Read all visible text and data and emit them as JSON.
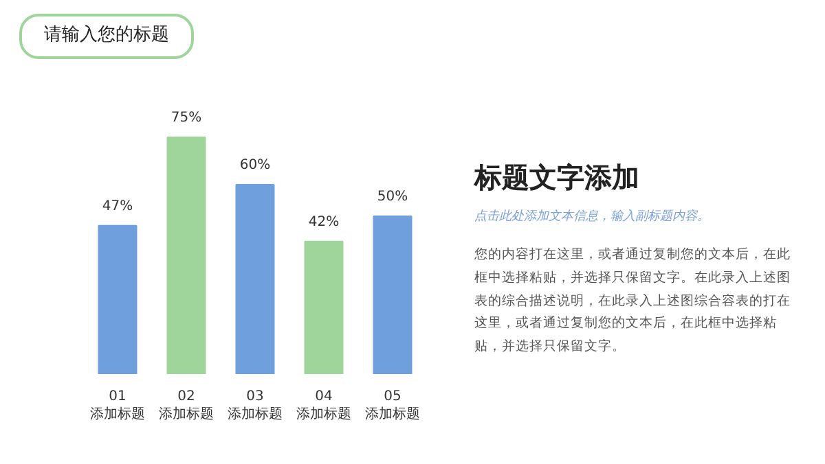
{
  "chart_data": {
    "type": "bar",
    "title": "请输入您的标题",
    "categories": [
      "01\n添加标题",
      "02\n添加标题",
      "03\n添加标题",
      "04\n添加标题",
      "05\n添加标题"
    ],
    "values": [
      47,
      75,
      60,
      42,
      50
    ],
    "value_labels": [
      "47%",
      "75%",
      "60%",
      "42%",
      "50%"
    ],
    "colors": [
      "#6f9fdc",
      "#9fd59a",
      "#6f9fdc",
      "#9fd59a",
      "#6f9fdc"
    ],
    "annotations": [
      "标题文字添加",
      "点击此处添加文本信息，输入副标题内容。",
      "您的内容打在这里，或者通过复制您的文本后，在此框中选择粘贴，并选择只保留文字。在此录入上述图表的综合描述说明，在此录入上述图综合容表的打在这里，或者通过复制您的文本后，在此框中选择粘贴，并选择只保留文字。"
    ],
    "grid": false
  }
}
